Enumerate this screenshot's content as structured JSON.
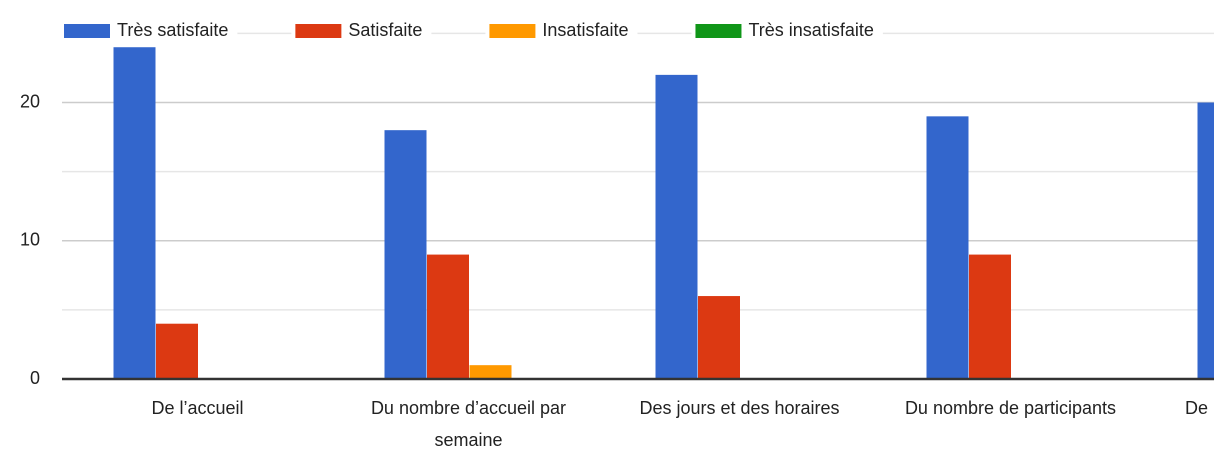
{
  "chart_data": {
    "type": "bar",
    "categories": [
      "De l’accueil",
      "Du nombre d’accueil par semaine",
      "Des jours et des horaires",
      "Du nombre de participants",
      "De"
    ],
    "series": [
      {
        "name": "Très satisfaite",
        "color": "#3366cc",
        "values": [
          24,
          18,
          22,
          19,
          20
        ]
      },
      {
        "name": "Satisfaite",
        "color": "#dc3912",
        "values": [
          4,
          9,
          6,
          9,
          null
        ]
      },
      {
        "name": "Insatisfaite",
        "color": "#ff9900",
        "values": [
          0,
          1,
          0,
          0,
          null
        ]
      },
      {
        "name": "Très insatisfaite",
        "color": "#109618",
        "values": [
          0,
          0,
          0,
          0,
          null
        ]
      }
    ],
    "ylim": [
      0,
      25
    ],
    "yticks": [
      0,
      10,
      20
    ],
    "minor_yticks": [
      5,
      15,
      25
    ],
    "grid": true,
    "legend": "top"
  }
}
